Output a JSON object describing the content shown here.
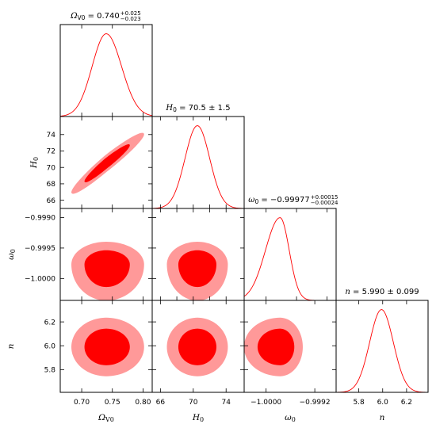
{
  "chart_data": {
    "type": "corner-contour",
    "parameters": [
      {
        "label": "Ω_V0",
        "label_main": "Ω",
        "label_sub": "V0",
        "mean": 0.74,
        "err_plus": 0.025,
        "err_minus": 0.023,
        "range": [
          0.665,
          0.815
        ],
        "ticks": [
          0.7,
          0.75,
          0.8
        ],
        "tick_labels": [
          "0.70",
          "0.75",
          "0.80"
        ],
        "title_prefix": "= ",
        "title_value": "0.740",
        "title_plus": "+0.025",
        "title_minus": "−0.023"
      },
      {
        "label": "H_0",
        "label_main": "H",
        "label_sub": "0",
        "mean": 70.5,
        "err_plus": 1.5,
        "err_minus": 1.5,
        "range": [
          65.0,
          76.2
        ],
        "ticks": [
          66,
          68,
          70,
          72,
          74
        ],
        "tick_labels": [
          "66",
          "68",
          "70",
          "72",
          "74"
        ],
        "bottom_ticks": [
          66,
          70,
          74
        ],
        "bottom_tick_labels": [
          "66",
          "70",
          "74"
        ],
        "title_prefix": "= ",
        "title_value": "70.5 ± 1.5"
      },
      {
        "label": "ω_0",
        "label_main": "ω",
        "label_sub": "0",
        "mean": -0.99977,
        "err_plus": 0.00015,
        "err_minus": 0.00024,
        "range": [
          -1.00036,
          -0.99885
        ],
        "ticks": [
          -1.0,
          -0.9995,
          -0.999
        ],
        "tick_labels": [
          "−1.0000",
          "−0.9995",
          "−0.9990"
        ],
        "bottom_ticks": [
          -1.0,
          -0.9992
        ],
        "bottom_tick_labels": [
          "−1.0000",
          "−0.9992"
        ],
        "title_prefix": "= ",
        "title_value": "−0.99977",
        "title_plus": "+0.00015",
        "title_minus": "−0.00024"
      },
      {
        "label": "n",
        "label_main": "n",
        "label_sub": "",
        "mean": 5.99,
        "err_plus": 0.099,
        "err_minus": 0.099,
        "range": [
          5.61,
          6.38
        ],
        "ticks": [
          5.8,
          6.0,
          6.2
        ],
        "tick_labels": [
          "5.8",
          "6.0",
          "6.2"
        ],
        "title_prefix": "= ",
        "title_value": "5.990 ± 0.099"
      }
    ],
    "correlations": [
      [
        1.0,
        0.96,
        0.0,
        0.0
      ],
      [
        0.96,
        1.0,
        0.0,
        0.0
      ],
      [
        0.0,
        0.0,
        1.0,
        0.0
      ],
      [
        0.0,
        0.0,
        0.0,
        1.0
      ]
    ],
    "contour_levels": [
      "68%",
      "95%"
    ],
    "colors": {
      "curve": "#ff0000",
      "inner_fill": "#ff0000",
      "outer_fill": "#ff9999"
    }
  }
}
